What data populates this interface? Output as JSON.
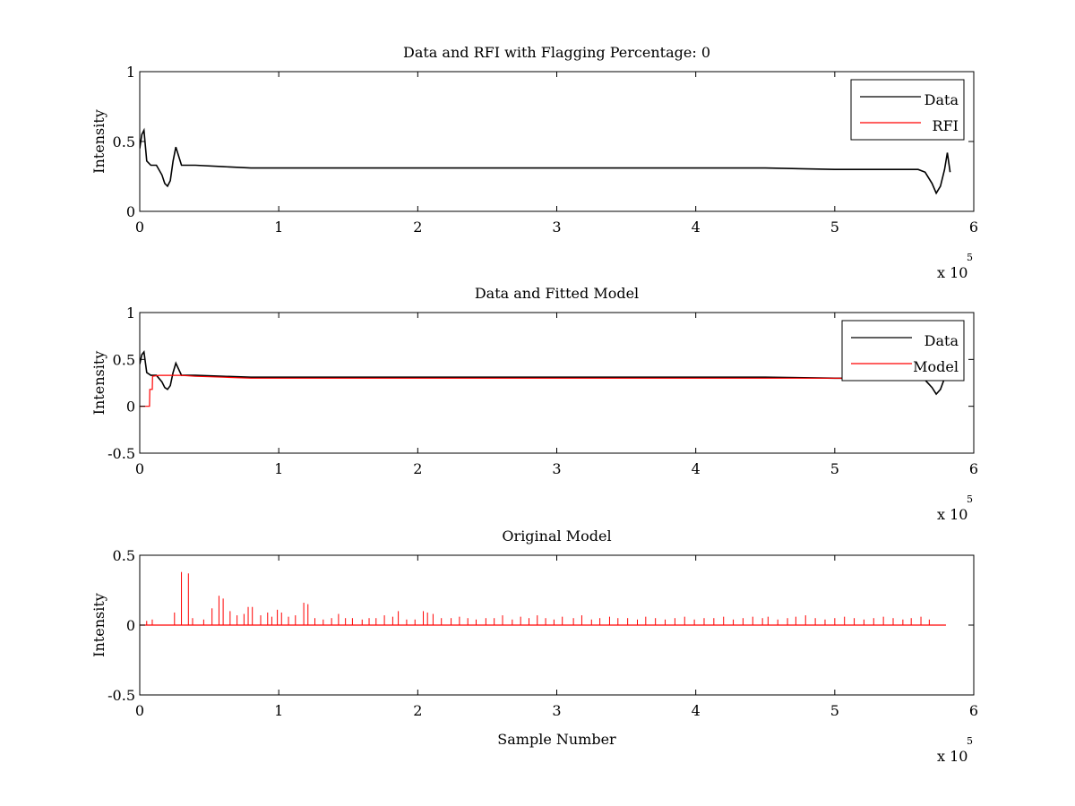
{
  "chart_data": [
    {
      "type": "line",
      "title": "Data and RFI with Flagging Percentage: 0",
      "xlabel": "",
      "ylabel": "Intensity",
      "xlim": [
        0,
        600000
      ],
      "ylim": [
        0,
        1
      ],
      "xticks": [
        0,
        1,
        2,
        3,
        4,
        5,
        6
      ],
      "xtick_labels": [
        "0",
        "1",
        "2",
        "3",
        "4",
        "5",
        "6"
      ],
      "yticks": [
        0,
        0.5,
        1
      ],
      "ytick_labels": [
        "0",
        "0.5",
        "1"
      ],
      "x_multiplier_base": "x 10",
      "x_multiplier_exp": "5",
      "grid": false,
      "legend": "top-right",
      "series": [
        {
          "name": "Data",
          "color": "#000000",
          "x": [
            0,
            1500,
            3000,
            5000,
            8000,
            12000,
            16000,
            18000,
            20000,
            22000,
            24000,
            26000,
            30000,
            40000,
            60000,
            80000,
            100000,
            150000,
            200000,
            250000,
            300000,
            350000,
            400000,
            450000,
            500000,
            550000,
            560000,
            565000,
            570000,
            573000,
            576000,
            579000,
            581000,
            583000
          ],
          "y": [
            0.45,
            0.55,
            0.58,
            0.36,
            0.33,
            0.33,
            0.26,
            0.2,
            0.18,
            0.22,
            0.36,
            0.46,
            0.33,
            0.33,
            0.32,
            0.31,
            0.31,
            0.31,
            0.31,
            0.31,
            0.31,
            0.31,
            0.31,
            0.31,
            0.3,
            0.3,
            0.3,
            0.28,
            0.2,
            0.13,
            0.18,
            0.3,
            0.42,
            0.28
          ]
        },
        {
          "name": "RFI",
          "color": "#ff0000",
          "x": [],
          "y": []
        }
      ]
    },
    {
      "type": "line",
      "title": "Data and Fitted Model",
      "xlabel": "",
      "ylabel": "Intensity",
      "xlim": [
        0,
        600000
      ],
      "ylim": [
        -0.5,
        1
      ],
      "xticks": [
        0,
        1,
        2,
        3,
        4,
        5,
        6
      ],
      "xtick_labels": [
        "0",
        "1",
        "2",
        "3",
        "4",
        "5",
        "6"
      ],
      "yticks": [
        -0.5,
        0,
        0.5,
        1
      ],
      "ytick_labels": [
        "-0.5",
        "0",
        "0.5",
        "1"
      ],
      "x_multiplier_base": "x 10",
      "x_multiplier_exp": "5",
      "grid": false,
      "legend": "top-right",
      "series": [
        {
          "name": "Data",
          "color": "#000000",
          "x": [
            0,
            1500,
            3000,
            5000,
            8000,
            12000,
            16000,
            18000,
            20000,
            22000,
            24000,
            26000,
            30000,
            40000,
            60000,
            80000,
            100000,
            150000,
            200000,
            250000,
            300000,
            350000,
            400000,
            450000,
            500000,
            550000,
            560000,
            565000,
            570000,
            573000,
            576000,
            579000,
            581000,
            583000
          ],
          "y": [
            0.45,
            0.55,
            0.58,
            0.36,
            0.33,
            0.33,
            0.26,
            0.2,
            0.18,
            0.22,
            0.36,
            0.46,
            0.33,
            0.33,
            0.32,
            0.31,
            0.31,
            0.31,
            0.31,
            0.31,
            0.31,
            0.31,
            0.31,
            0.31,
            0.3,
            0.3,
            0.3,
            0.28,
            0.2,
            0.13,
            0.18,
            0.3,
            0.42,
            0.28
          ]
        },
        {
          "name": "Model",
          "color": "#ff0000",
          "x": [
            0,
            7000,
            7200,
            9000,
            9200,
            14000,
            20000,
            30000,
            40000,
            60000,
            80000,
            100000,
            150000,
            200000,
            250000,
            300000,
            350000,
            400000,
            450000,
            500000,
            550000
          ],
          "y": [
            0,
            0,
            0.18,
            0.18,
            0.32,
            0.33,
            0.33,
            0.33,
            0.32,
            0.31,
            0.3,
            0.3,
            0.3,
            0.3,
            0.3,
            0.3,
            0.3,
            0.3,
            0.3,
            0.3,
            0.3
          ]
        }
      ]
    },
    {
      "type": "line",
      "title": "Original Model",
      "xlabel": "Sample Number",
      "ylabel": "Intensity",
      "xlim": [
        0,
        600000
      ],
      "ylim": [
        -0.5,
        0.5
      ],
      "xticks": [
        0,
        1,
        2,
        3,
        4,
        5,
        6
      ],
      "xtick_labels": [
        "0",
        "1",
        "2",
        "3",
        "4",
        "5",
        "6"
      ],
      "yticks": [
        -0.5,
        0,
        0.5
      ],
      "ytick_labels": [
        "-0.5",
        "0",
        "0.5"
      ],
      "x_multiplier_base": "x 10",
      "x_multiplier_exp": "5",
      "grid": false,
      "legend": "none",
      "series": [
        {
          "name": "",
          "color": "#ff0000",
          "baseline": 0,
          "x_end": 580000,
          "spikes_x": [
            5000,
            9000,
            25000,
            30000,
            35000,
            38000,
            46000,
            52000,
            57000,
            60000,
            65000,
            70000,
            75000,
            78000,
            81000,
            87000,
            92000,
            95000,
            99000,
            102000,
            107000,
            112000,
            118000,
            121000,
            126000,
            132000,
            138000,
            143000,
            148000,
            153000,
            160000,
            165000,
            170000,
            176000,
            182000,
            186000,
            192000,
            198000,
            204000,
            207000,
            211000,
            217000,
            224000,
            230000,
            236000,
            242000,
            249000,
            255000,
            261000,
            268000,
            274000,
            280000,
            286000,
            292000,
            298000,
            304000,
            312000,
            318000,
            325000,
            331000,
            338000,
            344000,
            351000,
            358000,
            364000,
            371000,
            378000,
            385000,
            392000,
            399000,
            406000,
            413000,
            420000,
            427000,
            434000,
            441000,
            448000,
            452000,
            459000,
            466000,
            472000,
            479000,
            486000,
            493000,
            500000,
            507000,
            514000,
            521000,
            528000,
            535000,
            542000,
            549000,
            555000,
            562000,
            568000
          ],
          "spikes_y": [
            0.03,
            0.04,
            0.09,
            0.38,
            0.37,
            0.05,
            0.04,
            0.12,
            0.21,
            0.19,
            0.1,
            0.07,
            0.08,
            0.13,
            0.13,
            0.07,
            0.09,
            0.06,
            0.11,
            0.09,
            0.06,
            0.07,
            0.16,
            0.15,
            0.05,
            0.04,
            0.05,
            0.08,
            0.05,
            0.05,
            0.04,
            0.05,
            0.05,
            0.07,
            0.06,
            0.1,
            0.04,
            0.04,
            0.1,
            0.09,
            0.08,
            0.05,
            0.05,
            0.06,
            0.05,
            0.04,
            0.05,
            0.05,
            0.07,
            0.04,
            0.06,
            0.05,
            0.07,
            0.05,
            0.04,
            0.06,
            0.05,
            0.07,
            0.04,
            0.05,
            0.06,
            0.05,
            0.05,
            0.04,
            0.06,
            0.05,
            0.04,
            0.05,
            0.06,
            0.04,
            0.05,
            0.05,
            0.06,
            0.04,
            0.05,
            0.06,
            0.05,
            0.06,
            0.04,
            0.05,
            0.06,
            0.07,
            0.05,
            0.04,
            0.05,
            0.06,
            0.05,
            0.04,
            0.05,
            0.06,
            0.05,
            0.04,
            0.05,
            0.06,
            0.04
          ]
        }
      ]
    }
  ]
}
